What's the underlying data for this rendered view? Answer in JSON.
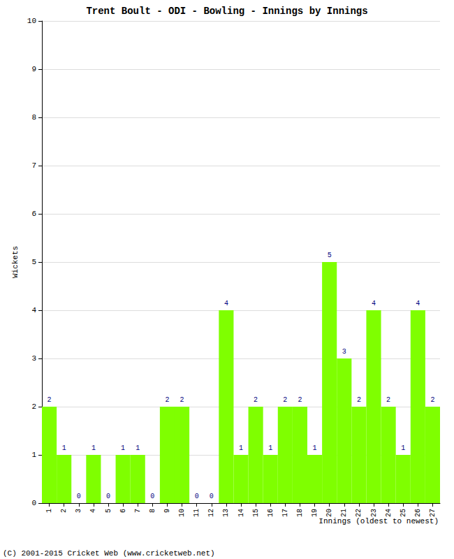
{
  "chart_data": {
    "type": "bar",
    "title": "Trent Boult - ODI - Bowling - Innings by Innings",
    "x_label": "Innings (oldest to newest)",
    "y_label": "Wickets",
    "annotations": [
      "(C) 2001-2015 Cricket Web (www.cricketweb.net)"
    ],
    "categories": [
      "1",
      "2",
      "3",
      "4",
      "5",
      "6",
      "7",
      "8",
      "9",
      "10",
      "11",
      "12",
      "13",
      "14",
      "15",
      "16",
      "17",
      "18",
      "19",
      "20",
      "21",
      "22",
      "23",
      "24",
      "25",
      "26",
      "27"
    ],
    "values": [
      2,
      1,
      0,
      1,
      0,
      1,
      1,
      0,
      2,
      2,
      0,
      0,
      4,
      1,
      2,
      1,
      2,
      2,
      1,
      5,
      3,
      2,
      4,
      2,
      1,
      4,
      2
    ],
    "color": "#7fff00",
    "ylim": [
      0,
      10
    ],
    "yticks": [
      0,
      1,
      2,
      3,
      4,
      5,
      6,
      7,
      8,
      9,
      10
    ],
    "grid": true,
    "data_labels": true
  }
}
